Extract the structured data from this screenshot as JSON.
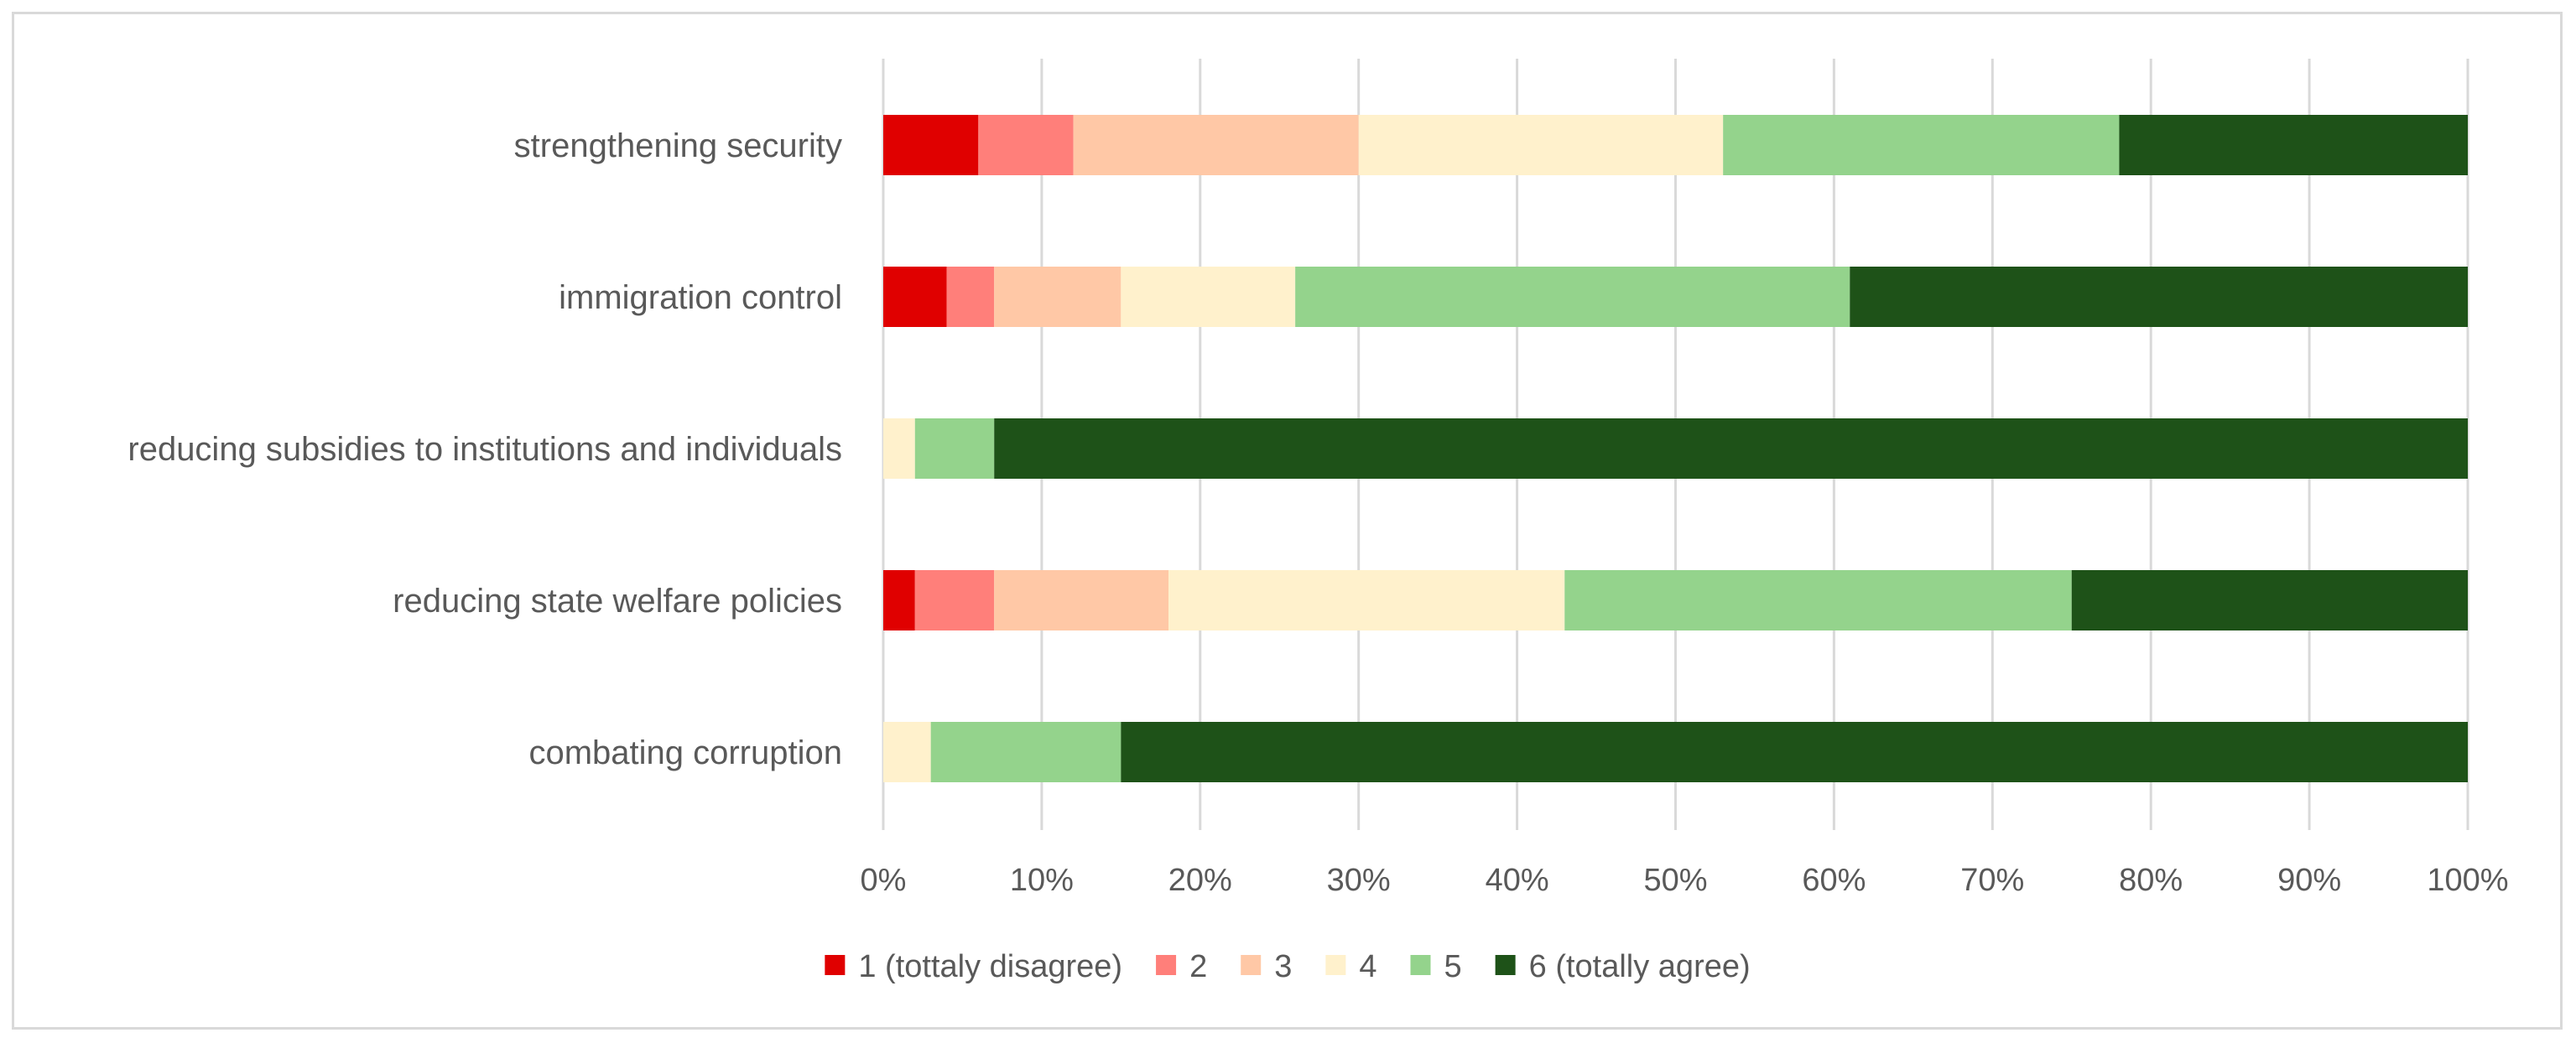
{
  "chart_data": {
    "type": "bar",
    "orientation": "horizontal",
    "stacked": "percent",
    "title": "",
    "xlabel": "",
    "ylabel": "",
    "xlim": [
      0,
      100
    ],
    "grid": true,
    "legend_position": "bottom",
    "categories": [
      "strengthening security",
      "immigration control",
      "reducing subsidies to institutions and individuals",
      "reducing state welfare policies",
      "combating corruption"
    ],
    "x_ticks": [
      "0%",
      "10%",
      "20%",
      "30%",
      "40%",
      "50%",
      "60%",
      "70%",
      "80%",
      "90%",
      "100%"
    ],
    "series": [
      {
        "name": "1 (tottaly disagree)",
        "color": "#e00000",
        "values": [
          6,
          4,
          0,
          2,
          0
        ]
      },
      {
        "name": "2",
        "color": "#ff7f7a",
        "values": [
          6,
          3,
          0,
          5,
          0
        ]
      },
      {
        "name": "3",
        "color": "#ffc8a6",
        "values": [
          18,
          8,
          0,
          11,
          0
        ]
      },
      {
        "name": "4",
        "color": "#fff1cc",
        "values": [
          23,
          11,
          2,
          25,
          3
        ]
      },
      {
        "name": "5",
        "color": "#94d38c",
        "values": [
          25,
          35,
          5,
          32,
          12
        ]
      },
      {
        "name": "6 (totally agree)",
        "color": "#1e5218",
        "values": [
          22,
          39,
          93,
          25,
          85
        ]
      }
    ]
  }
}
